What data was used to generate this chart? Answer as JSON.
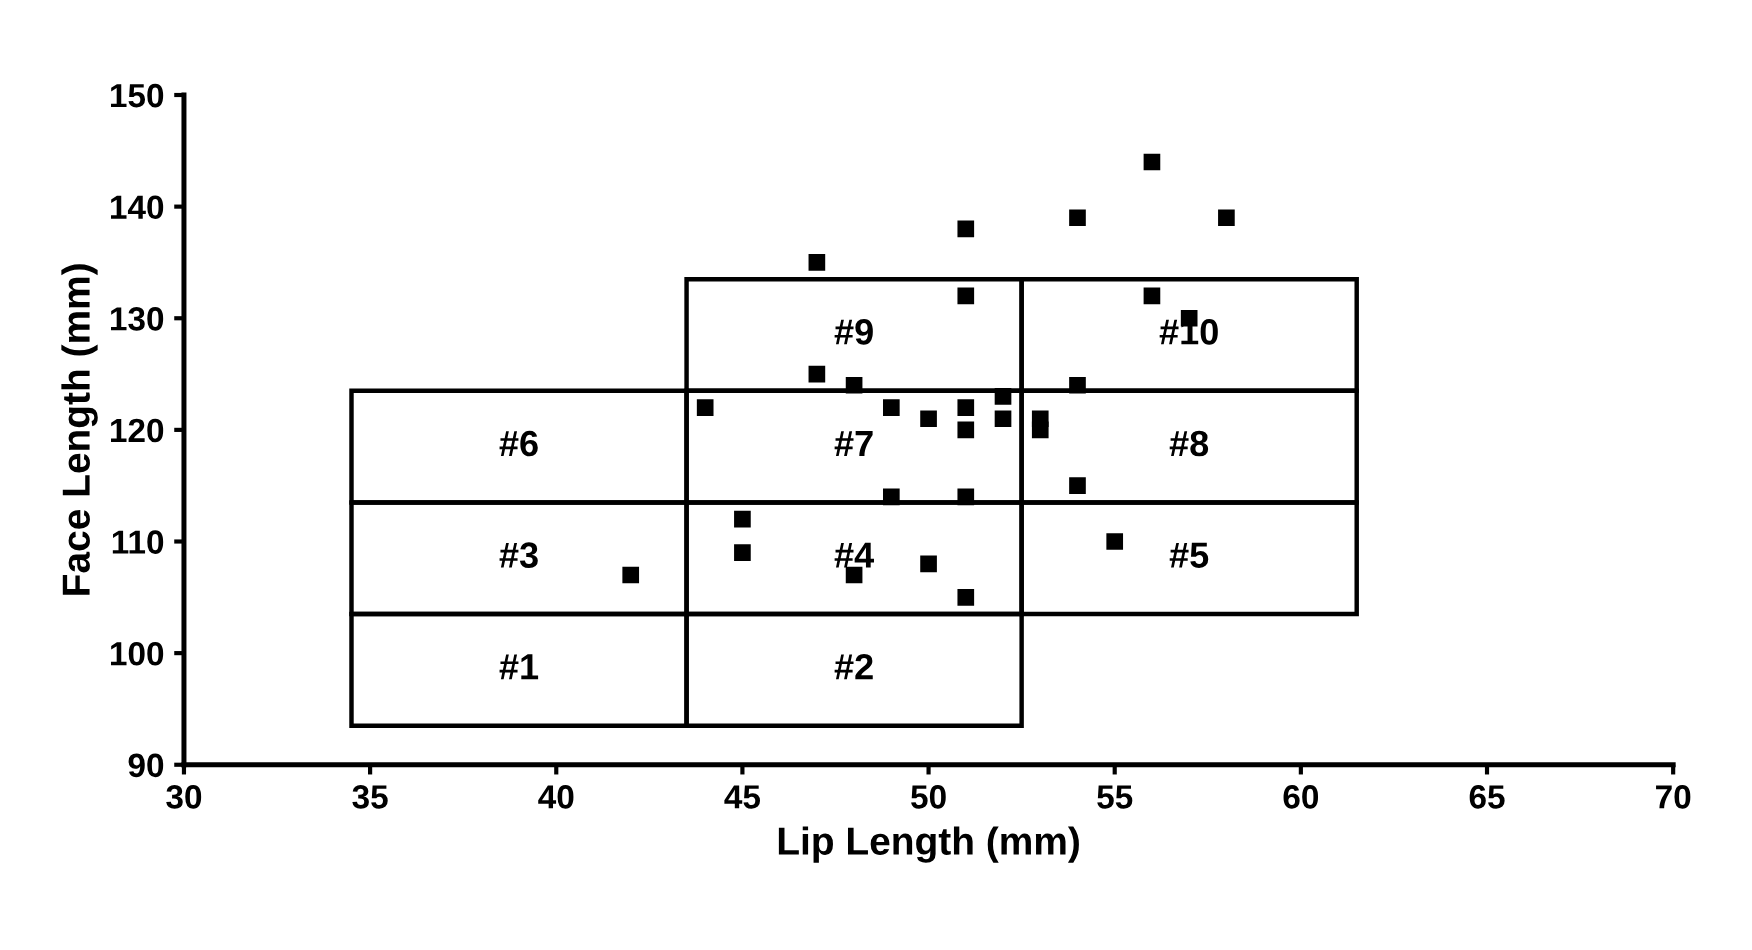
{
  "chart_data": {
    "type": "scatter",
    "xlabel": "Lip Length (mm)",
    "ylabel": "Face Length (mm)",
    "xlim": [
      30,
      70
    ],
    "xticks": [
      30,
      35,
      40,
      45,
      50,
      55,
      60,
      65,
      70
    ],
    "ylim": [
      90,
      150
    ],
    "yticks": [
      90,
      100,
      110,
      120,
      130,
      140,
      150
    ],
    "grid": false,
    "legend": false,
    "marker": "square",
    "series": [
      {
        "color": "#000000",
        "x": [
          42,
          44,
          45,
          45,
          47,
          47,
          48,
          48,
          49,
          49,
          50,
          50,
          51,
          51,
          51,
          51,
          51,
          51,
          52,
          52,
          53,
          53,
          54,
          54,
          54,
          55,
          56,
          56,
          57,
          58
        ],
        "values": [
          107,
          122,
          112,
          109,
          135,
          125,
          124,
          107,
          122,
          114,
          121,
          108,
          138,
          132,
          122,
          120,
          114,
          105,
          123,
          121,
          121,
          120,
          139,
          124,
          115,
          110,
          144,
          132,
          130,
          139
        ]
      },
      {
        "type": "bar",
        "name": "#1",
        "color": "#000000",
        "x": [
          39
        ],
        "base": [
          93.5
        ],
        "values": [
          10
        ]
      },
      {
        "type": "bar",
        "name": "#2",
        "color": "#000000",
        "x": [
          48
        ],
        "base": [
          93.5
        ],
        "values": [
          10
        ]
      },
      {
        "type": "bar",
        "name": "#3",
        "color": "#000000",
        "x": [
          39
        ],
        "base": [
          103.5
        ],
        "values": [
          10
        ]
      },
      {
        "type": "bar",
        "name": "#4",
        "color": "#000000",
        "x": [
          48
        ],
        "base": [
          103.5
        ],
        "values": [
          10
        ]
      },
      {
        "type": "bar",
        "name": "#5",
        "color": "#000000",
        "x": [
          57
        ],
        "base": [
          103.5
        ],
        "values": [
          10
        ]
      },
      {
        "type": "bar",
        "name": "#6",
        "color": "#000000",
        "x": [
          39
        ],
        "base": [
          113.5
        ],
        "values": [
          10
        ]
      },
      {
        "type": "bar",
        "name": "#7",
        "color": "#000000",
        "x": [
          48
        ],
        "base": [
          113.5
        ],
        "values": [
          10
        ]
      },
      {
        "type": "bar",
        "name": "#8",
        "color": "#000000",
        "x": [
          57
        ],
        "base": [
          113.5
        ],
        "values": [
          10
        ]
      },
      {
        "type": "bar",
        "name": "#9",
        "color": "#000000",
        "x": [
          48
        ],
        "base": [
          123.5
        ],
        "values": [
          10
        ]
      },
      {
        "type": "bar",
        "name": "#10",
        "color": "#000000",
        "x": [
          57
        ],
        "base": [
          123.5
        ],
        "values": [
          10
        ]
      }
    ]
  }
}
